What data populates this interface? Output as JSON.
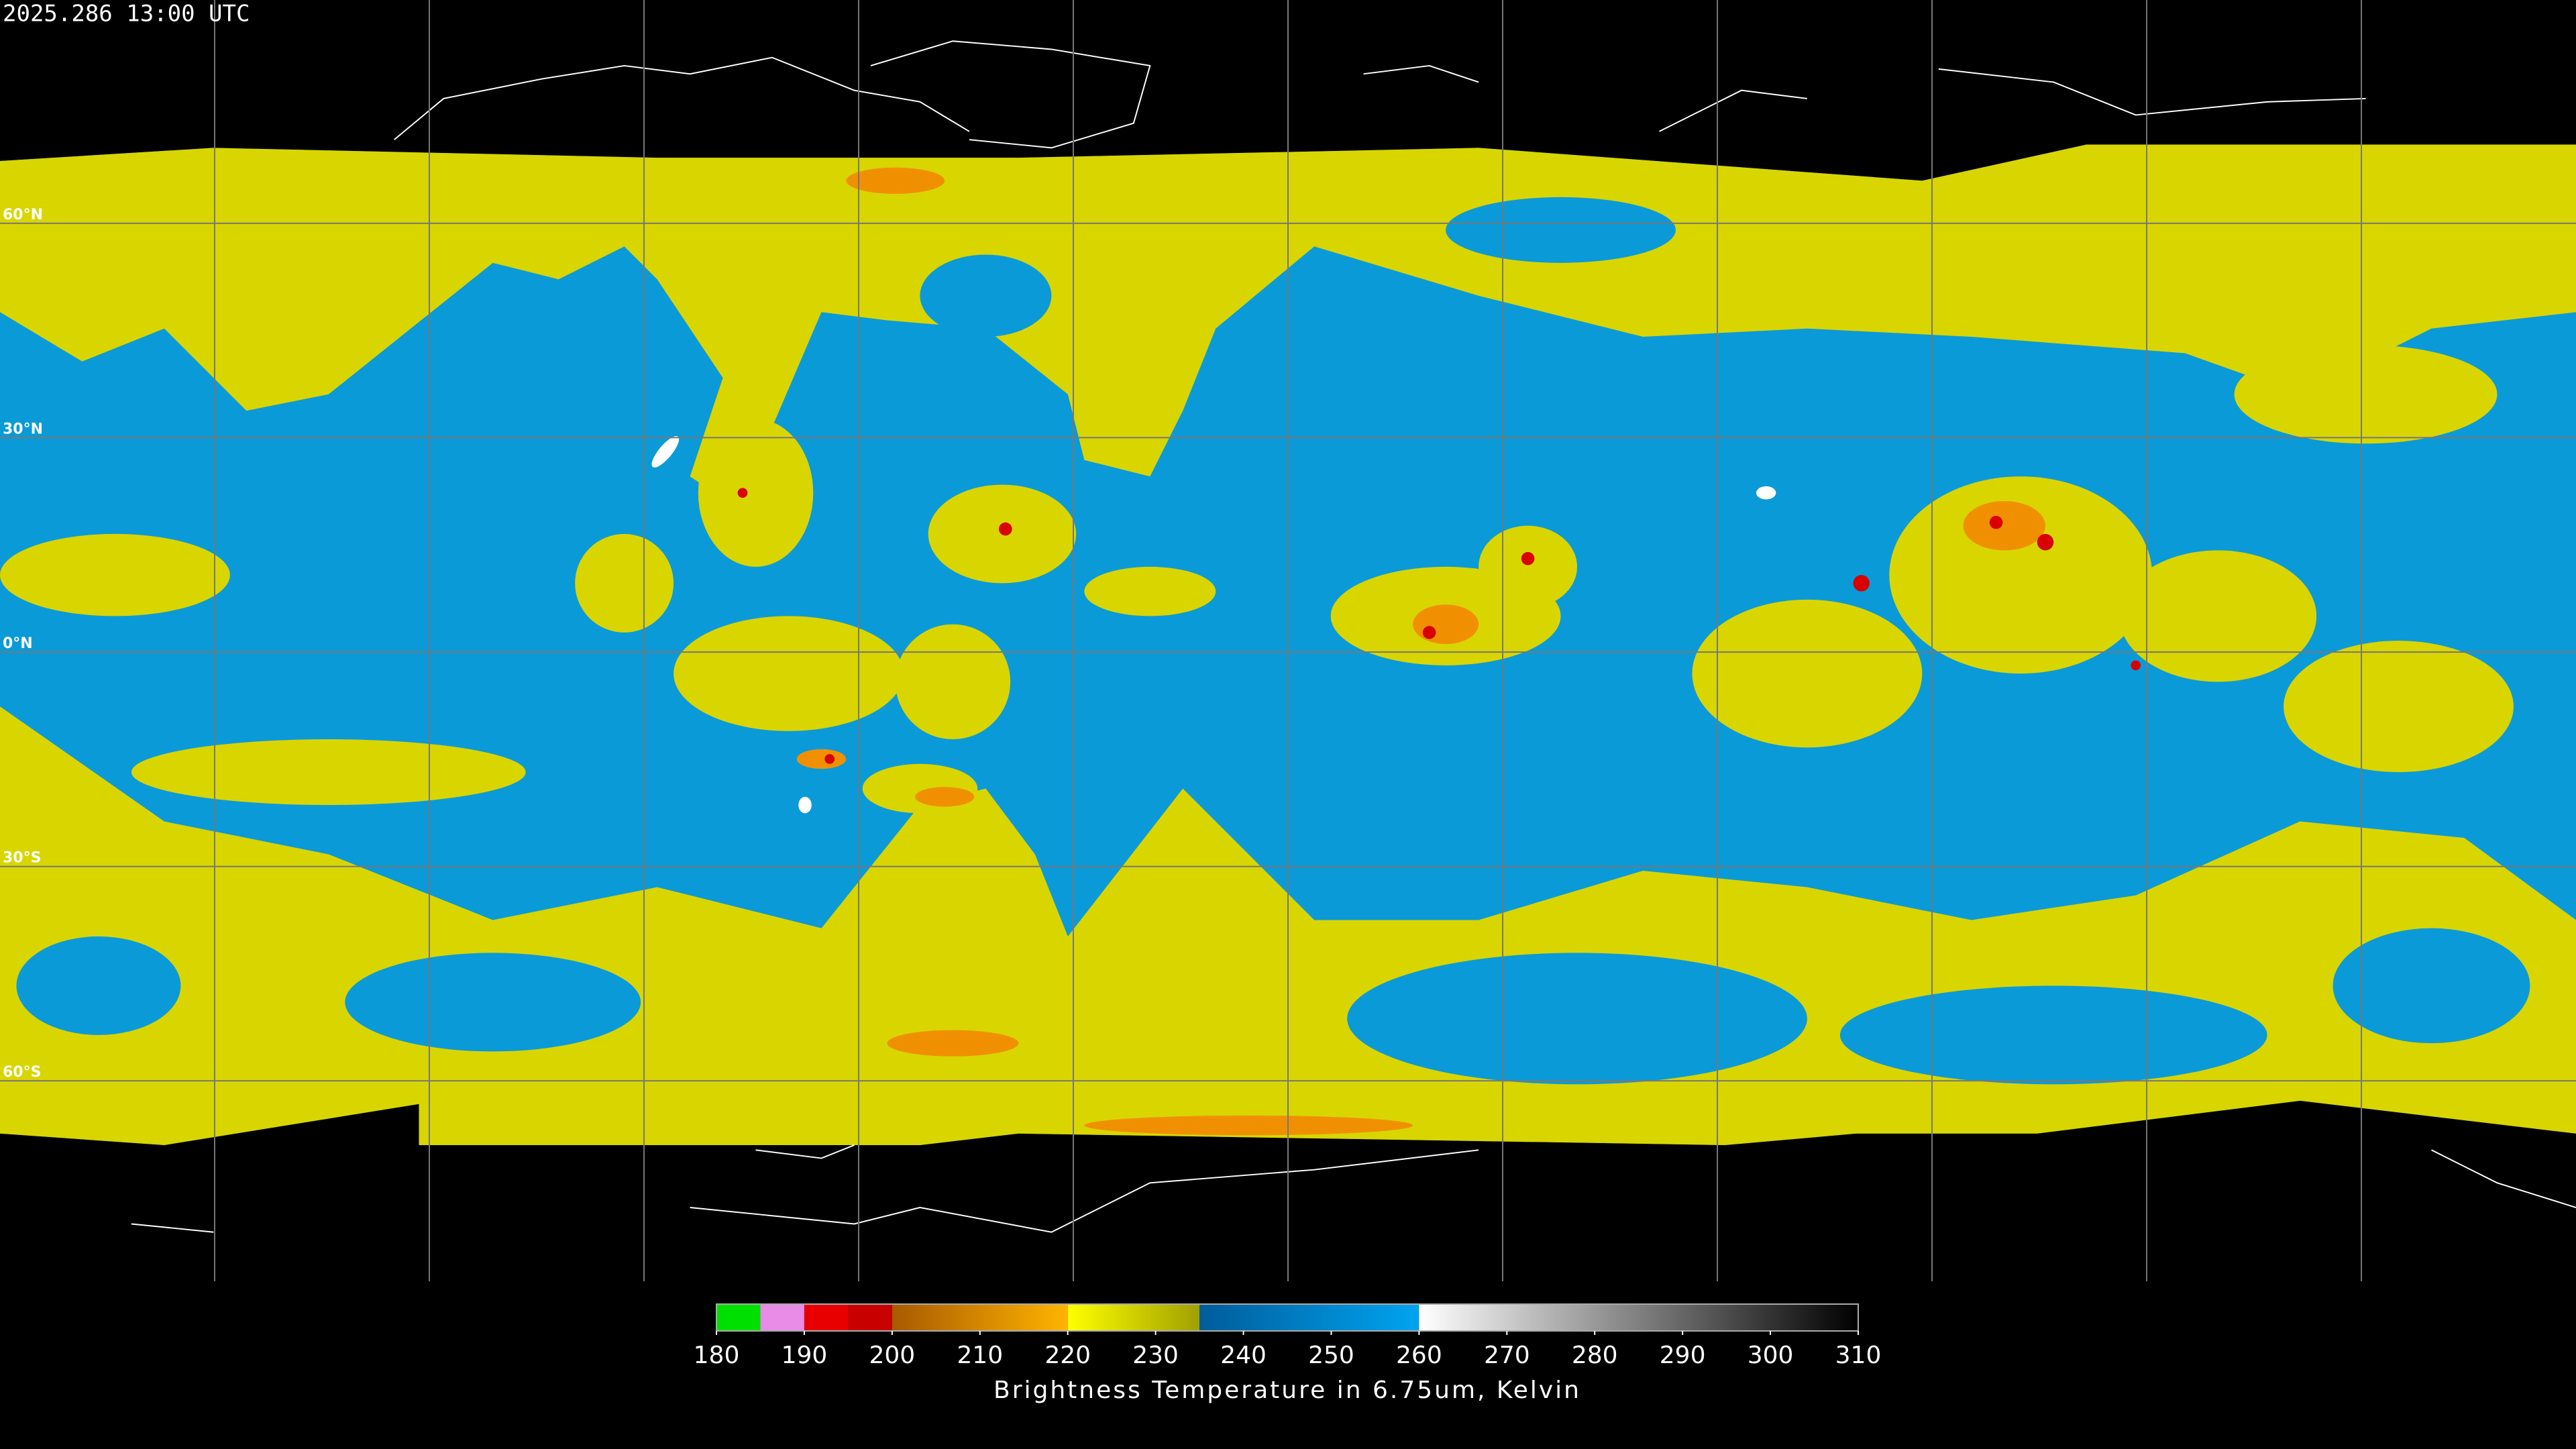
{
  "timestamp": "2025.286 13:00 UTC",
  "lat_ticks": [
    {
      "value": 60,
      "label": "60°N"
    },
    {
      "value": 30,
      "label": "30°N"
    },
    {
      "value": 0,
      "label": "0°N"
    },
    {
      "value": -30,
      "label": "30°S"
    },
    {
      "value": -60,
      "label": "60°S"
    }
  ],
  "lon_grid": [
    -150,
    -120,
    -90,
    -60,
    -30,
    0,
    30,
    60,
    90,
    120,
    150
  ],
  "colorbar": {
    "title": "Brightness Temperature in 6.75um, Kelvin",
    "range": [
      180,
      310
    ],
    "ticks": [
      180,
      190,
      200,
      210,
      220,
      230,
      240,
      250,
      260,
      270,
      280,
      290,
      300,
      310
    ],
    "segments": [
      {
        "from": 180,
        "to": 185,
        "colors": [
          "#00e000",
          "#00e000"
        ]
      },
      {
        "from": 185,
        "to": 190,
        "colors": [
          "#e88ce8",
          "#e88ce8"
        ]
      },
      {
        "from": 190,
        "to": 195,
        "colors": [
          "#e80000",
          "#e80000"
        ]
      },
      {
        "from": 195,
        "to": 200,
        "colors": [
          "#c80000",
          "#c80000"
        ]
      },
      {
        "from": 200,
        "to": 220,
        "colors": [
          "#a85a00",
          "#ffb400"
        ]
      },
      {
        "from": 220,
        "to": 235,
        "colors": [
          "#ffff00",
          "#a0a000"
        ]
      },
      {
        "from": 235,
        "to": 260,
        "colors": [
          "#005c9a",
          "#00a4f0"
        ]
      },
      {
        "from": 260,
        "to": 310,
        "colors": [
          "#ffffff",
          "#000000"
        ]
      }
    ]
  }
}
